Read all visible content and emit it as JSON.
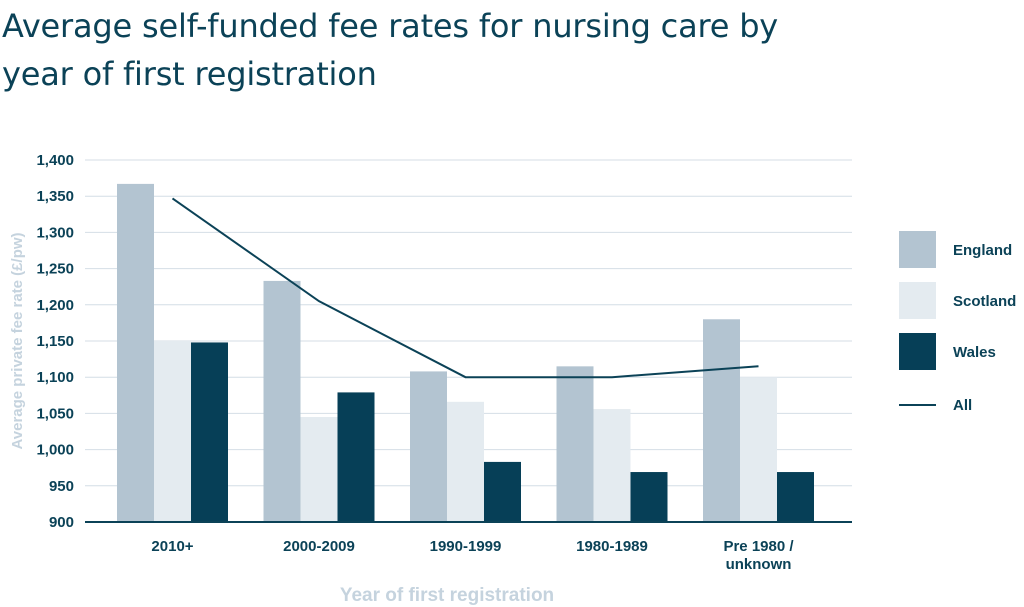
{
  "chart_data": {
    "type": "bar",
    "title": "Average self-funded fee rates for nursing care by year of first registration",
    "xlabel": "Year of first registration",
    "ylabel": "Average private fee rate (£/pw)",
    "ylim": [
      900,
      1400
    ],
    "yticks": [
      "900",
      "950",
      "1,000",
      "1,050",
      "1,100",
      "1,150",
      "1,200",
      "1,250",
      "1,300",
      "1,350",
      "1,400"
    ],
    "ytick_values": [
      900,
      950,
      1000,
      1050,
      1100,
      1150,
      1200,
      1250,
      1300,
      1350,
      1400
    ],
    "categories": [
      [
        "2010+"
      ],
      [
        "2000-2009"
      ],
      [
        "1990-1999"
      ],
      [
        "1980-1989"
      ],
      [
        "Pre 1980 /",
        "unknown"
      ]
    ],
    "series": [
      {
        "name": "England",
        "kind": "bar",
        "color": "#b3c4d1",
        "values": [
          1367,
          1233,
          1108,
          1115,
          1180
        ]
      },
      {
        "name": "Scotland",
        "kind": "bar",
        "color": "#e4ebf0",
        "values": [
          1150,
          1045,
          1066,
          1056,
          1100
        ]
      },
      {
        "name": "Wales",
        "kind": "bar",
        "color": "#063f57",
        "values": [
          1148,
          1079,
          983,
          969,
          969
        ]
      },
      {
        "name": "All",
        "kind": "line",
        "color": "#0b4257",
        "values": [
          1347,
          1205,
          1100,
          1100,
          1115
        ]
      }
    ],
    "grid": true,
    "legend": "right"
  }
}
